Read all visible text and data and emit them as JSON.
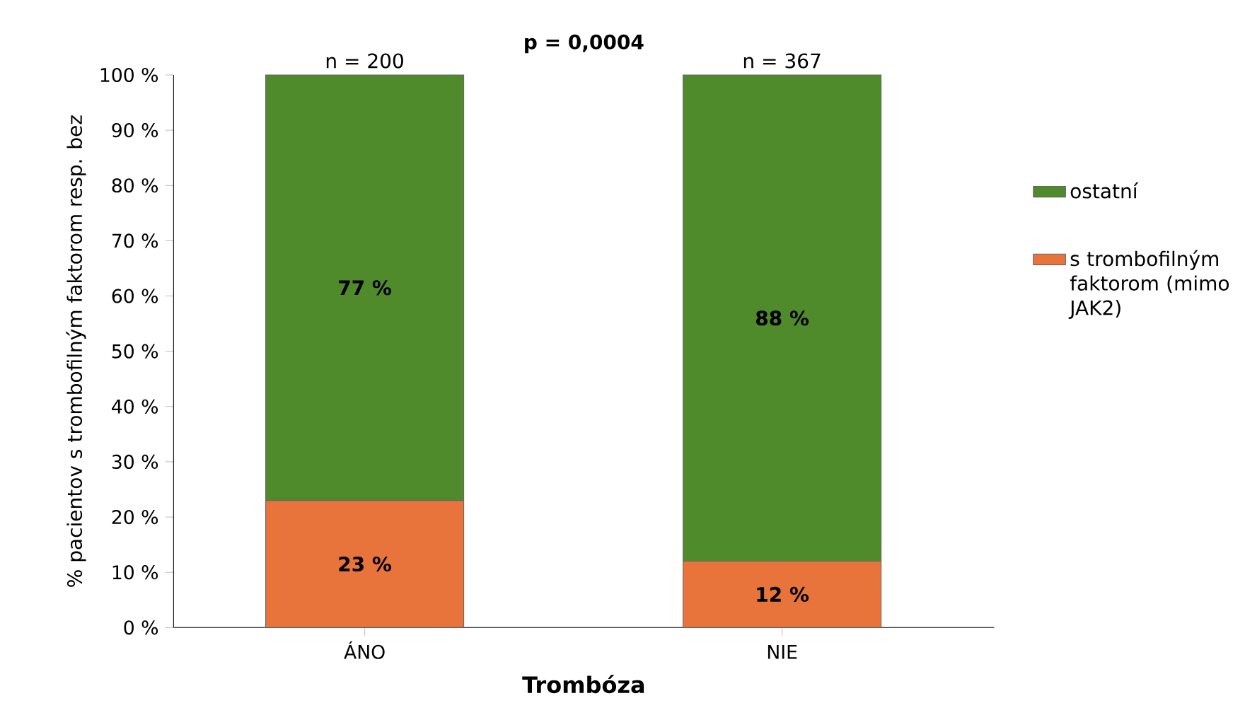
{
  "chart_data": {
    "type": "bar",
    "title": "p = 0,0004",
    "xlabel": "Trombóza",
    "ylabel": "% pacientov s trombofilným faktorom resp. bez",
    "categories": [
      "ÁNO",
      "NIE"
    ],
    "stacked": true,
    "series": [
      {
        "name": "s trombofilným faktorom (mimo JAK2)",
        "color": "#e8743b",
        "values": [
          23,
          12
        ],
        "value_labels": [
          "23 %",
          "12 %"
        ]
      },
      {
        "name": "ostatní",
        "color": "#4f8a2b",
        "values": [
          77,
          88
        ],
        "value_labels": [
          "77 %",
          "88 %"
        ]
      }
    ],
    "annotations": [
      {
        "text": "n = 200",
        "x": "ÁNO",
        "y": 100
      },
      {
        "text": "n = 367",
        "x": "NIE",
        "y": 100
      }
    ],
    "ylim": [
      0,
      100
    ],
    "yticks": [
      {
        "value": 0,
        "label": "0 %"
      },
      {
        "value": 10,
        "label": "10 %"
      },
      {
        "value": 20,
        "label": "20 %"
      },
      {
        "value": 30,
        "label": "30 %"
      },
      {
        "value": 40,
        "label": "40 %"
      },
      {
        "value": 50,
        "label": "50 %"
      },
      {
        "value": 60,
        "label": "60 %"
      },
      {
        "value": 70,
        "label": "70 %"
      },
      {
        "value": 80,
        "label": "80 %"
      },
      {
        "value": 90,
        "label": "90 %"
      },
      {
        "value": 100,
        "label": "100 %"
      }
    ],
    "legend": "right",
    "grid": false
  }
}
